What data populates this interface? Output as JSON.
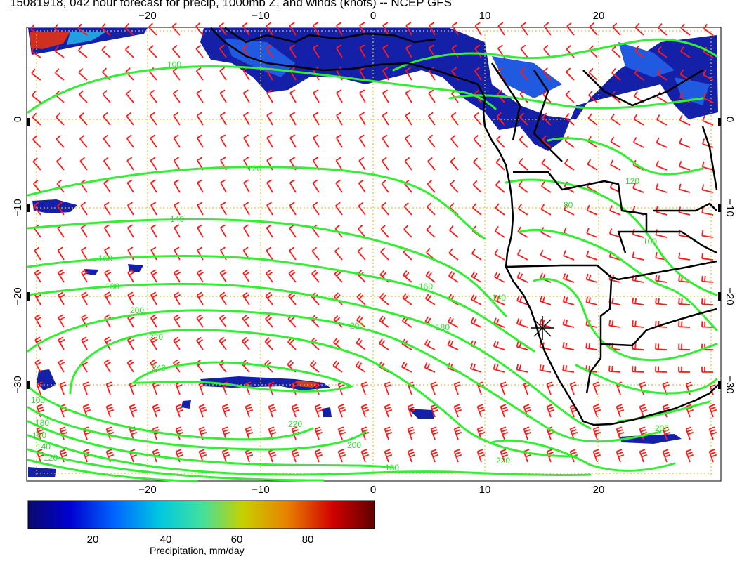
{
  "title": "15081918, 042 hour forecast for precip, 1000mb Z, and winds (knots) -- NCEP GFS",
  "map": {
    "lon_range": [
      -31,
      31
    ],
    "lat_range": [
      10,
      -40
    ],
    "lon_ticks": [
      -20,
      -10,
      0,
      10,
      20
    ],
    "lat_ticks": [
      0,
      -10,
      -20,
      -30
    ],
    "lon_tick_labels": [
      "−20",
      "−10",
      "0",
      "10",
      "20"
    ],
    "lat_tick_labels": [
      "0",
      "−10",
      "−20",
      "−30"
    ],
    "grid_line_color": "#d4c43a",
    "contour_color": "#33ee33",
    "wind_barb_color": "#ff1a1a",
    "coastline_color": "#000000",
    "contour_labels": [
      "100",
      "120",
      "140",
      "160",
      "180",
      "200",
      "220",
      "240",
      "80",
      "100",
      "120",
      "140",
      "160",
      "180",
      "200",
      "220"
    ],
    "contour_values_m": [
      80,
      100,
      120,
      140,
      160,
      180,
      200,
      220,
      240
    ],
    "marker": {
      "name": "station-star",
      "lon": 15,
      "lat": -22.9
    }
  },
  "colorbar": {
    "label": "Precipitation, mm/day",
    "tick_values": [
      20,
      40,
      60,
      80
    ],
    "tick_labels": [
      "20",
      "40",
      "60",
      "80"
    ],
    "range": [
      0,
      100
    ],
    "colors": [
      "#0a0a6e",
      "#0000d0",
      "#0066ff",
      "#00c8e0",
      "#40e0a0",
      "#c8d000",
      "#e88000",
      "#d00000",
      "#600000"
    ]
  }
}
